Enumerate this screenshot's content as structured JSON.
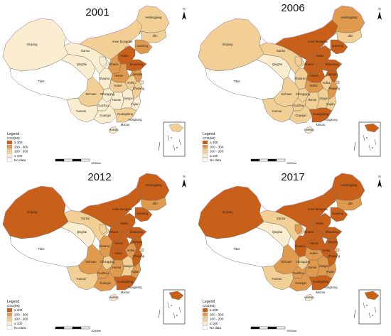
{
  "legend": {
    "title": "Legend",
    "subtitle": "CO2(Mt)",
    "classes": [
      {
        "label": "≥ 300",
        "color": "#c8601a"
      },
      {
        "label": "200 - 300",
        "color": "#e09a4e"
      },
      {
        "label": "100 - 200",
        "color": "#f2cf94"
      },
      {
        "label": "≤ 100",
        "color": "#fbedcf"
      },
      {
        "label": "No data",
        "color": "#ffffff"
      }
    ]
  },
  "scale_label": "1000km",
  "north_label": "N",
  "provinces": [
    {
      "name": "Xinjiang"
    },
    {
      "name": "Tibet"
    },
    {
      "name": "Qinghai"
    },
    {
      "name": "Gansu"
    },
    {
      "name": "Inner Mongolia"
    },
    {
      "name": "Heilongjiang"
    },
    {
      "name": "Jilin"
    },
    {
      "name": "Liaoning"
    },
    {
      "name": "Hebei"
    },
    {
      "name": "Shanxi"
    },
    {
      "name": "Shandong"
    },
    {
      "name": "Henan"
    },
    {
      "name": "Shaanxi"
    },
    {
      "name": "Sichuan"
    },
    {
      "name": "Hubei"
    },
    {
      "name": "Hunan"
    },
    {
      "name": "Jiangxi"
    },
    {
      "name": "Anhui"
    },
    {
      "name": "Jiangsu"
    },
    {
      "name": "Zhejiang"
    },
    {
      "name": "Fujian"
    },
    {
      "name": "Guizhou"
    },
    {
      "name": "Yunnan"
    },
    {
      "name": "Guangxi"
    },
    {
      "name": "Guangdong"
    },
    {
      "name": "Hainan"
    },
    {
      "name": "Hongkong"
    },
    {
      "name": "Macao"
    },
    {
      "name": "Chongqing"
    }
  ],
  "panels": [
    {
      "year": "2001",
      "classes": {
        "Xinjiang": 4,
        "Tibet": 5,
        "Qinghai": 4,
        "Gansu": 4,
        "Ningxia": 4,
        "Inner Mongolia": 3,
        "Heilongjiang": 3,
        "Jilin": 3,
        "Liaoning": 2,
        "Beijing": 4,
        "Tianjin": 4,
        "Hebei": 1,
        "Shanxi": 2,
        "Shandong": 1,
        "Henan": 2,
        "Shaanxi": 4,
        "Sichuan": 3,
        "Chongqing": 4,
        "Hubei": 3,
        "Hunan": 4,
        "Jiangxi": 4,
        "Anhui": 3,
        "Jiangsu": 2,
        "Shanghai": 4,
        "Zhejiang": 3,
        "Fujian": 4,
        "Guizhou": 4,
        "Yunnan": 4,
        "Guangxi": 4,
        "Guangdong": 3,
        "Hainan": 4
      }
    },
    {
      "year": "2006",
      "classes": {
        "Xinjiang": 3,
        "Tibet": 5,
        "Qinghai": 4,
        "Gansu": 3,
        "Ningxia": 3,
        "Inner Mongolia": 1,
        "Heilongjiang": 2,
        "Jilin": 3,
        "Liaoning": 1,
        "Beijing": 3,
        "Tianjin": 3,
        "Hebei": 1,
        "Shanxi": 1,
        "Shandong": 1,
        "Henan": 1,
        "Shaanxi": 3,
        "Sichuan": 3,
        "Chongqing": 3,
        "Hubei": 2,
        "Hunan": 3,
        "Jiangxi": 3,
        "Anhui": 3,
        "Jiangsu": 1,
        "Shanghai": 3,
        "Zhejiang": 2,
        "Fujian": 3,
        "Guizhou": 3,
        "Yunnan": 3,
        "Guangxi": 3,
        "Guangdong": 1,
        "Hainan": 4
      }
    },
    {
      "year": "2012",
      "classes": {
        "Xinjiang": 1,
        "Tibet": 5,
        "Qinghai": 4,
        "Gansu": 3,
        "Ningxia": 3,
        "Inner Mongolia": 1,
        "Heilongjiang": 1,
        "Jilin": 2,
        "Liaoning": 1,
        "Beijing": 3,
        "Tianjin": 3,
        "Hebei": 1,
        "Shanxi": 1,
        "Shandong": 1,
        "Henan": 1,
        "Shaanxi": 2,
        "Sichuan": 2,
        "Chongqing": 3,
        "Hubei": 1,
        "Hunan": 2,
        "Jiangxi": 3,
        "Anhui": 2,
        "Jiangsu": 1,
        "Shanghai": 3,
        "Zhejiang": 1,
        "Fujian": 2,
        "Guizhou": 2,
        "Yunnan": 3,
        "Guangxi": 2,
        "Guangdong": 1,
        "Hainan": 4
      }
    },
    {
      "year": "2017",
      "classes": {
        "Xinjiang": 1,
        "Tibet": 5,
        "Qinghai": 4,
        "Gansu": 3,
        "Ningxia": 2,
        "Inner Mongolia": 1,
        "Heilongjiang": 1,
        "Jilin": 2,
        "Liaoning": 1,
        "Beijing": 3,
        "Tianjin": 3,
        "Hebei": 1,
        "Shanxi": 1,
        "Shandong": 1,
        "Henan": 1,
        "Shaanxi": 1,
        "Sichuan": 2,
        "Chongqing": 3,
        "Hubei": 2,
        "Hunan": 2,
        "Jiangxi": 2,
        "Anhui": 1,
        "Jiangsu": 1,
        "Shanghai": 3,
        "Zhejiang": 1,
        "Fujian": 2,
        "Guizhou": 2,
        "Yunnan": 3,
        "Guangxi": 2,
        "Guangdong": 1,
        "Hainan": 4
      }
    }
  ]
}
